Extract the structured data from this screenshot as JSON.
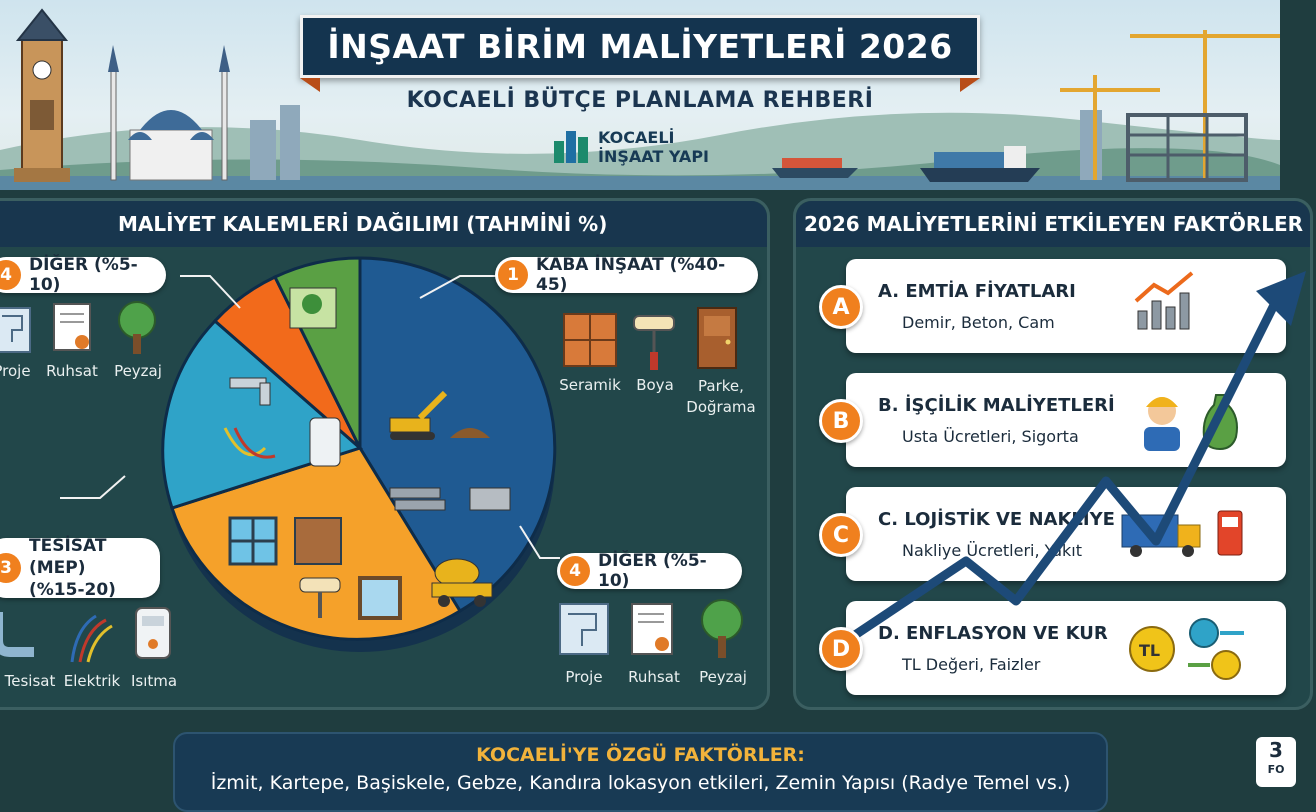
{
  "header": {
    "title": "İNŞAAT BİRİM MALİYETLERİ 2026",
    "subtitle": "KOCAELİ BÜTÇE PLANLAMA REHBERİ",
    "logo_line1": "KOCAELİ",
    "logo_line2": "İNŞAAT YAPI"
  },
  "colors": {
    "navy": "#14344f",
    "orange_accent": "#f0801e",
    "panel_bg": "#22474a",
    "pie_blue": "#1f5a92",
    "pie_orange": "#f5a12a",
    "pie_teal": "#2fa3c8",
    "pie_red_orange": "#f26a1b",
    "pie_green": "#5aa044"
  },
  "cost_panel": {
    "heading": "MALİYET KALEMLERİ DAĞILIMI (TAHMİNİ %)",
    "labels": {
      "top_left": {
        "num": "4",
        "text": "DİĞER (%5-10)"
      },
      "top_right": {
        "num": "1",
        "text": "KABA İNŞAAT (%40-45)"
      },
      "mid_left": {
        "num": "3",
        "text": "TESİSAT (MEP)\n(%15-20)"
      },
      "mid_right": {
        "num": "4",
        "text": "DİĞER (%5-10)"
      }
    },
    "top_left_icons": [
      {
        "caption": "Proje",
        "icon": "blueprint-icon"
      },
      {
        "caption": "Ruhsat",
        "icon": "certificate-icon"
      },
      {
        "caption": "Peyzaj",
        "icon": "tree-icon"
      }
    ],
    "right_icons": [
      {
        "caption": "Seramik",
        "icon": "tile-icon"
      },
      {
        "caption": "Boya",
        "icon": "paint-roller-icon"
      },
      {
        "caption": "Parke,\nDoğrama",
        "icon": "door-icon"
      }
    ],
    "bottom_left_icons": [
      {
        "caption": "Tesisat",
        "icon": "pipe-icon"
      },
      {
        "caption": "Elektrik",
        "icon": "cables-icon"
      },
      {
        "caption": "Isıtma",
        "icon": "boiler-icon"
      }
    ],
    "bottom_right_icons": [
      {
        "caption": "Proje",
        "icon": "blueprint-icon"
      },
      {
        "caption": "Ruhsat",
        "icon": "certificate-icon"
      },
      {
        "caption": "Peyzaj",
        "icon": "tree-icon"
      }
    ]
  },
  "factors_panel": {
    "heading": "2026 MALİYETLERİNİ ETKİLEYEN FAKTÖRLER",
    "items": [
      {
        "letter": "A",
        "title": "A. EMTİA FİYATLARI",
        "sub": "Demir, Beton, Cam",
        "icon": "rising-chart-icon"
      },
      {
        "letter": "B",
        "title": "B. İŞÇİLİK MALİYETLERİ",
        "sub": "Usta Ücretleri, Sigorta",
        "icon": "worker-money-icon"
      },
      {
        "letter": "C",
        "title": "C. LOJİSTİK VE NAKLİYE",
        "sub": "Nakliye Ücretleri, Yakıt",
        "icon": "truck-fuel-icon"
      },
      {
        "letter": "D",
        "title": "D. ENFLASYON VE KUR",
        "sub": "TL Değeri, Faizler",
        "icon": "currency-exchange-icon"
      }
    ]
  },
  "footer": {
    "heading": "KOCAELİ'YE ÖZGÜ FAKTÖRLER:",
    "body": "İzmit, Kartepe, Başiskele, Gebze, Kandıra lokasyon etkileri, Zemin Yapısı (Radye Temel vs.)",
    "corner_num": "3",
    "corner_text": "FO"
  }
}
